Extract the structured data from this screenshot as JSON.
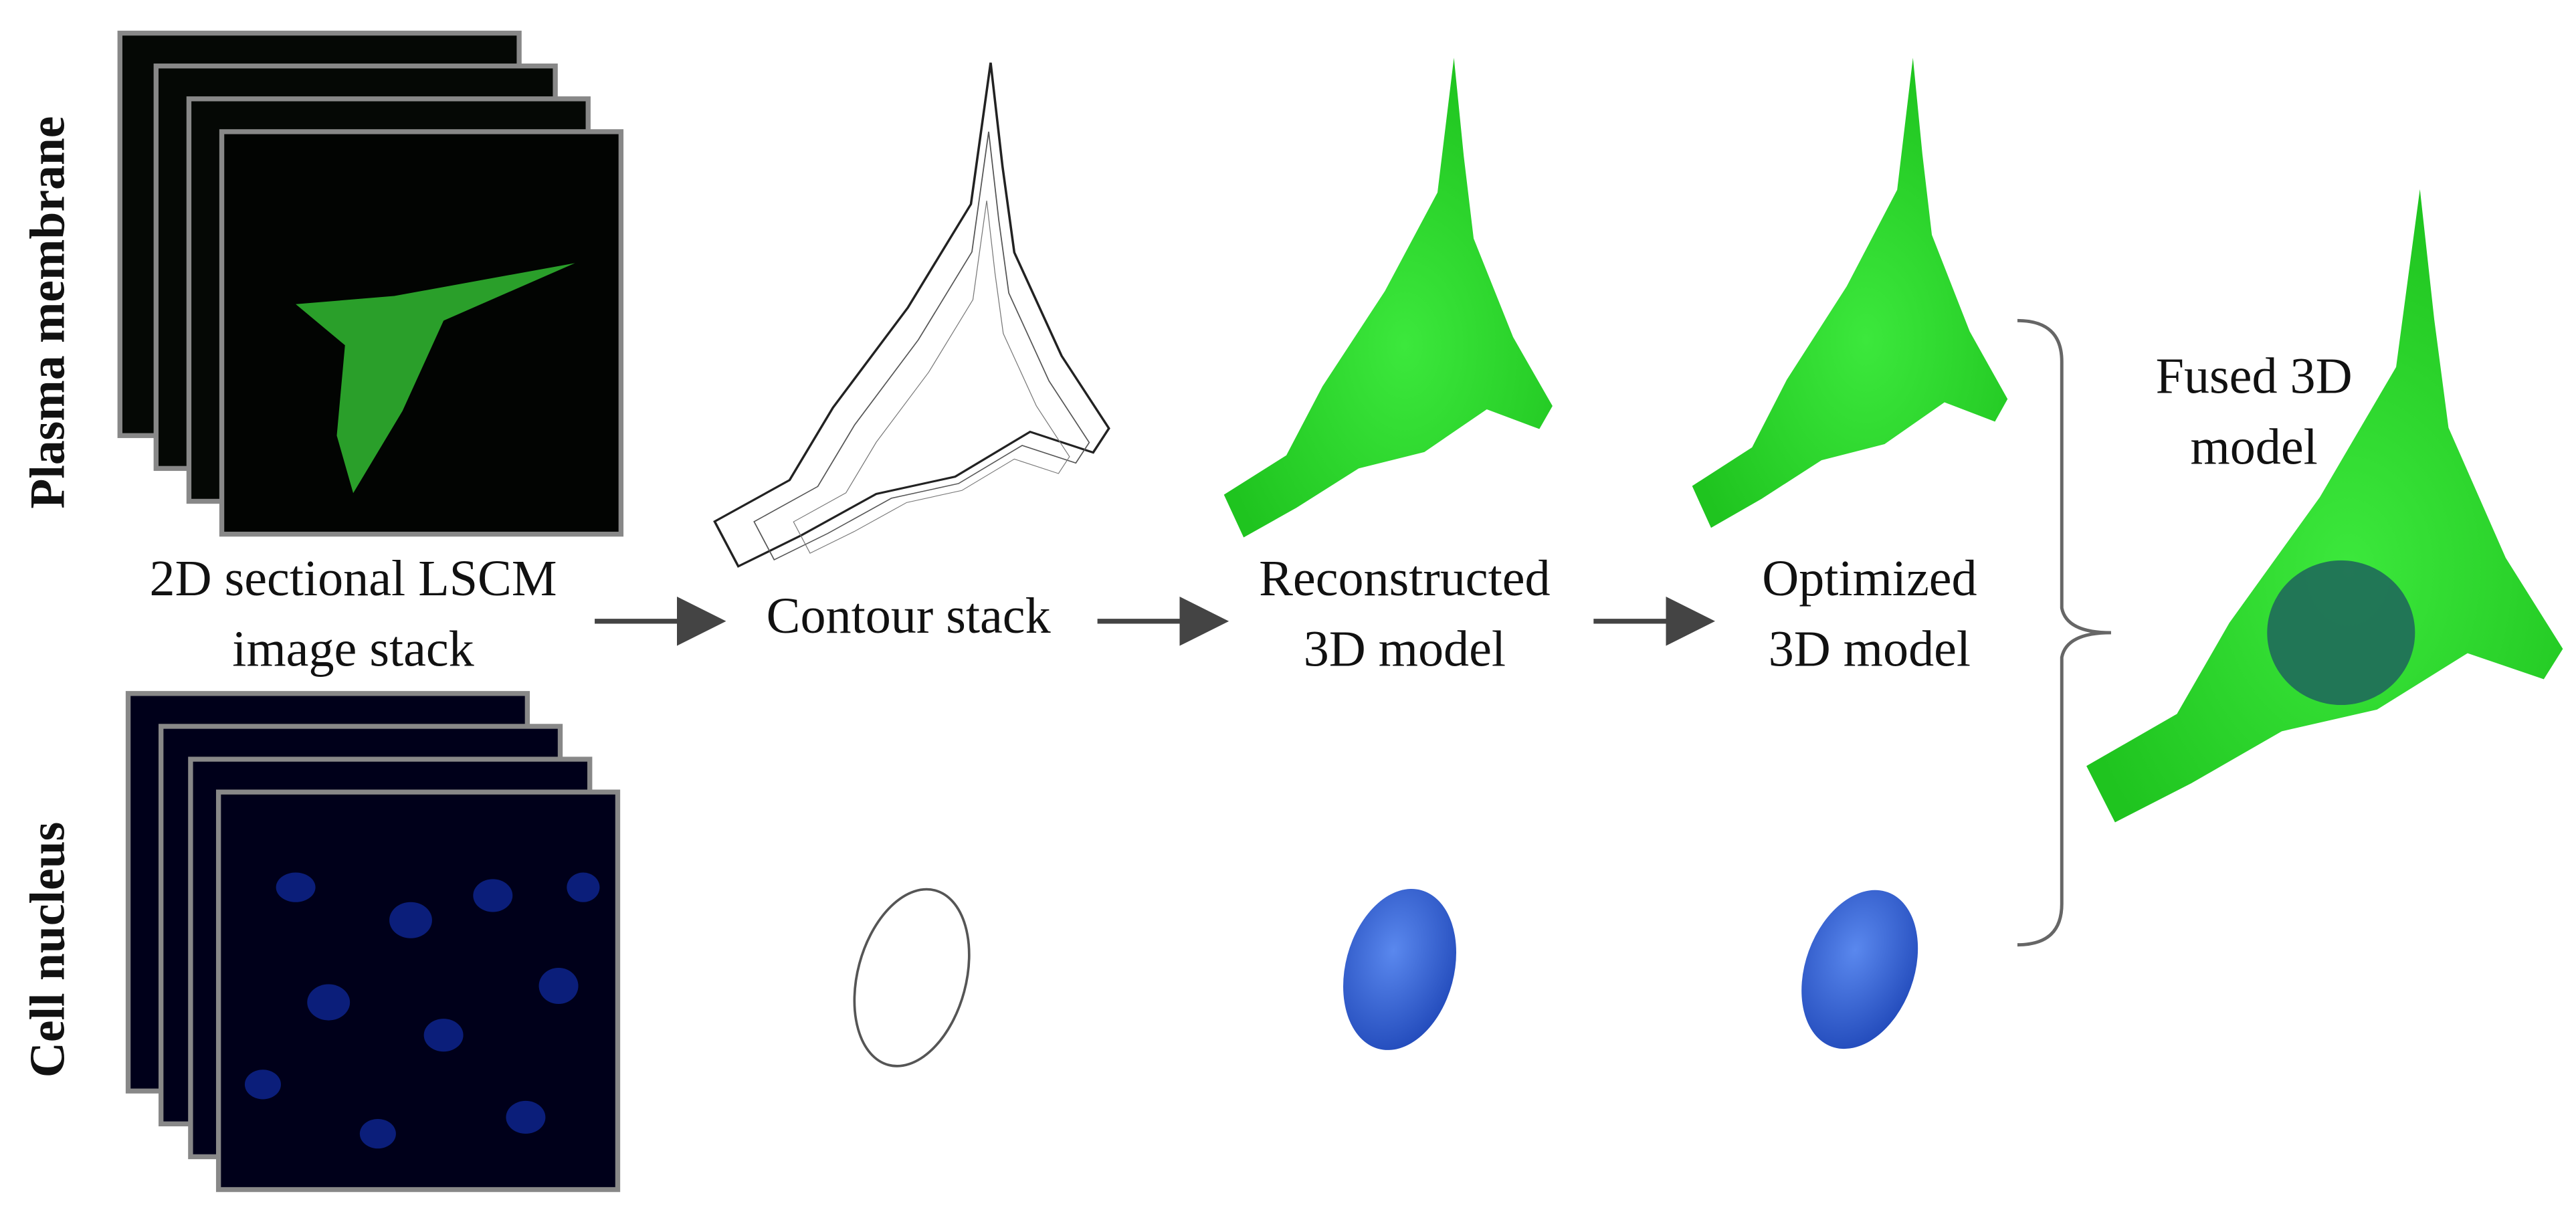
{
  "row_labels": [
    "Plasma membrane",
    "Cell nucleus"
  ],
  "stages": [
    {
      "lines": [
        "2D sectional LSCM",
        "image stack"
      ]
    },
    {
      "lines": [
        "Contour stack"
      ]
    },
    {
      "lines": [
        "Reconstructed",
        "3D model"
      ]
    },
    {
      "lines": [
        "Optimized",
        "3D model"
      ]
    },
    {
      "lines": [
        "Fused 3D",
        "model"
      ]
    }
  ]
}
